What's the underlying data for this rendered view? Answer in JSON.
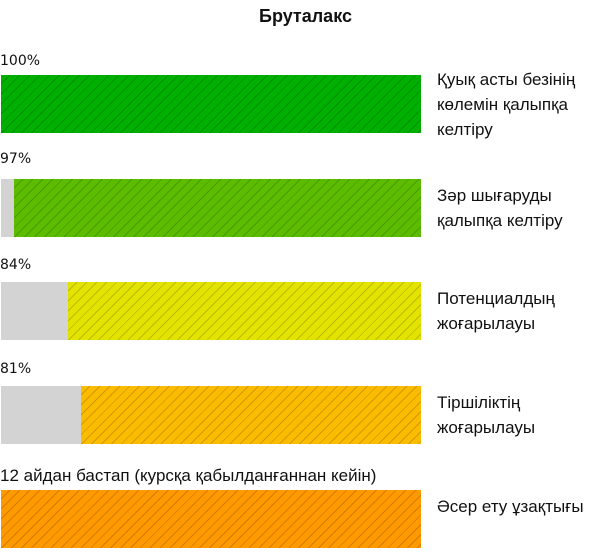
{
  "chart_data": {
    "type": "bar",
    "orientation": "horizontal",
    "title": "Бруталакс",
    "xlim": [
      0,
      100
    ],
    "grid": false,
    "categories": [
      "Қуық асты безінің көлемін қалыпқа келтіру",
      "Зәр шығаруды қалыпқа келтіру",
      "Потенциалдың жоғарылауы",
      "Тіршіліктің жоғарылауы",
      "Әсер ету ұзақтығы"
    ],
    "values": [
      100,
      97,
      84,
      81,
      100
    ],
    "value_labels": [
      "100%",
      "97%",
      "84%",
      "81%",
      "12 айдан бастап (курсқа қабылданғаннан кейін)"
    ],
    "colors": [
      "#00b000",
      "#5cbc00",
      "#e3e300",
      "#fbbc00",
      "#ff9900"
    ]
  }
}
